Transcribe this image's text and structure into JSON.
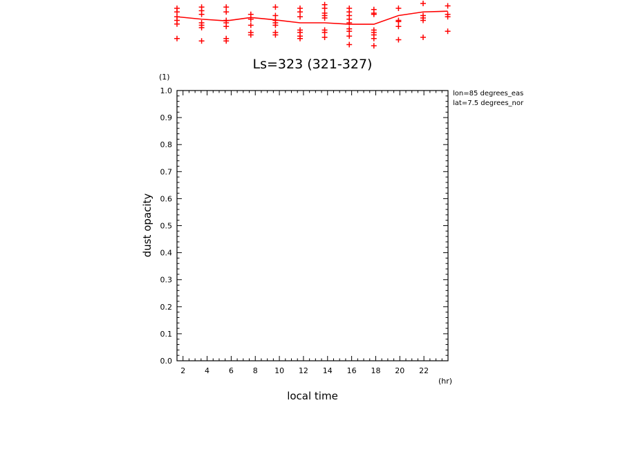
{
  "chart_data": [
    {
      "type": "scatter",
      "description_of_visible_part": "bottom of the previous panel, clipped at top of image",
      "x": [
        2,
        4,
        6,
        8,
        10,
        12,
        14,
        16,
        18,
        20,
        22,
        24
      ],
      "mean_line": [
        0.45,
        0.35,
        0.28,
        0.42,
        0.32,
        0.2,
        0.2,
        0.14,
        0.14,
        0.5,
        0.65,
        0.68
      ],
      "markers": [
        [
          0.8,
          0.65,
          0.45,
          0.3,
          0.15,
          -0.45
        ],
        [
          0.85,
          0.7,
          0.55,
          0.2,
          0.1,
          0.0,
          -0.55
        ],
        [
          0.85,
          0.65,
          0.3,
          0.2,
          0.05,
          -0.45,
          -0.55
        ],
        [
          0.55,
          0.35,
          0.1,
          -0.2,
          -0.3
        ],
        [
          0.85,
          0.5,
          0.3,
          0.2,
          0.1,
          -0.2,
          -0.3
        ],
        [
          0.8,
          0.65,
          0.45,
          -0.1,
          -0.2,
          -0.35,
          -0.45
        ],
        [
          0.95,
          0.8,
          0.6,
          0.5,
          0.4,
          -0.1,
          -0.2,
          -0.4
        ],
        [
          0.8,
          0.65,
          0.5,
          0.35,
          0.2,
          -0.05,
          -0.15,
          -0.35,
          -0.7
        ],
        [
          0.75,
          0.6,
          0.55,
          -0.1,
          -0.2,
          -0.3,
          -0.45,
          -0.75
        ],
        [
          0.8,
          0.3,
          0.25,
          0.05,
          -0.5
        ],
        [
          1.0,
          0.5,
          0.4,
          0.3,
          -0.4
        ],
        [
          0.9,
          0.55,
          0.45,
          -0.15
        ]
      ]
    },
    {
      "type": "scatter",
      "title": "Ls=323 (321-327)",
      "xlabel": "local time",
      "xunit": "(hr)",
      "ylabel": "dust opacity",
      "yunit": "(1)",
      "xlim": [
        1.5,
        24
      ],
      "ylim": [
        0,
        1
      ],
      "x_ticks": [
        2,
        4,
        6,
        8,
        10,
        12,
        14,
        16,
        18,
        20,
        22
      ],
      "y_ticks": [
        "0.0",
        "0.1",
        "0.2",
        "0.3",
        "0.4",
        "0.5",
        "0.6",
        "0.7",
        "0.8",
        "0.9",
        "1.0"
      ],
      "annotations": [
        "lon=85 degrees_eas",
        "lat=7.5 degrees_nor"
      ],
      "series": []
    }
  ],
  "colors": {
    "data": "#ff0000",
    "axes": "#000000"
  }
}
